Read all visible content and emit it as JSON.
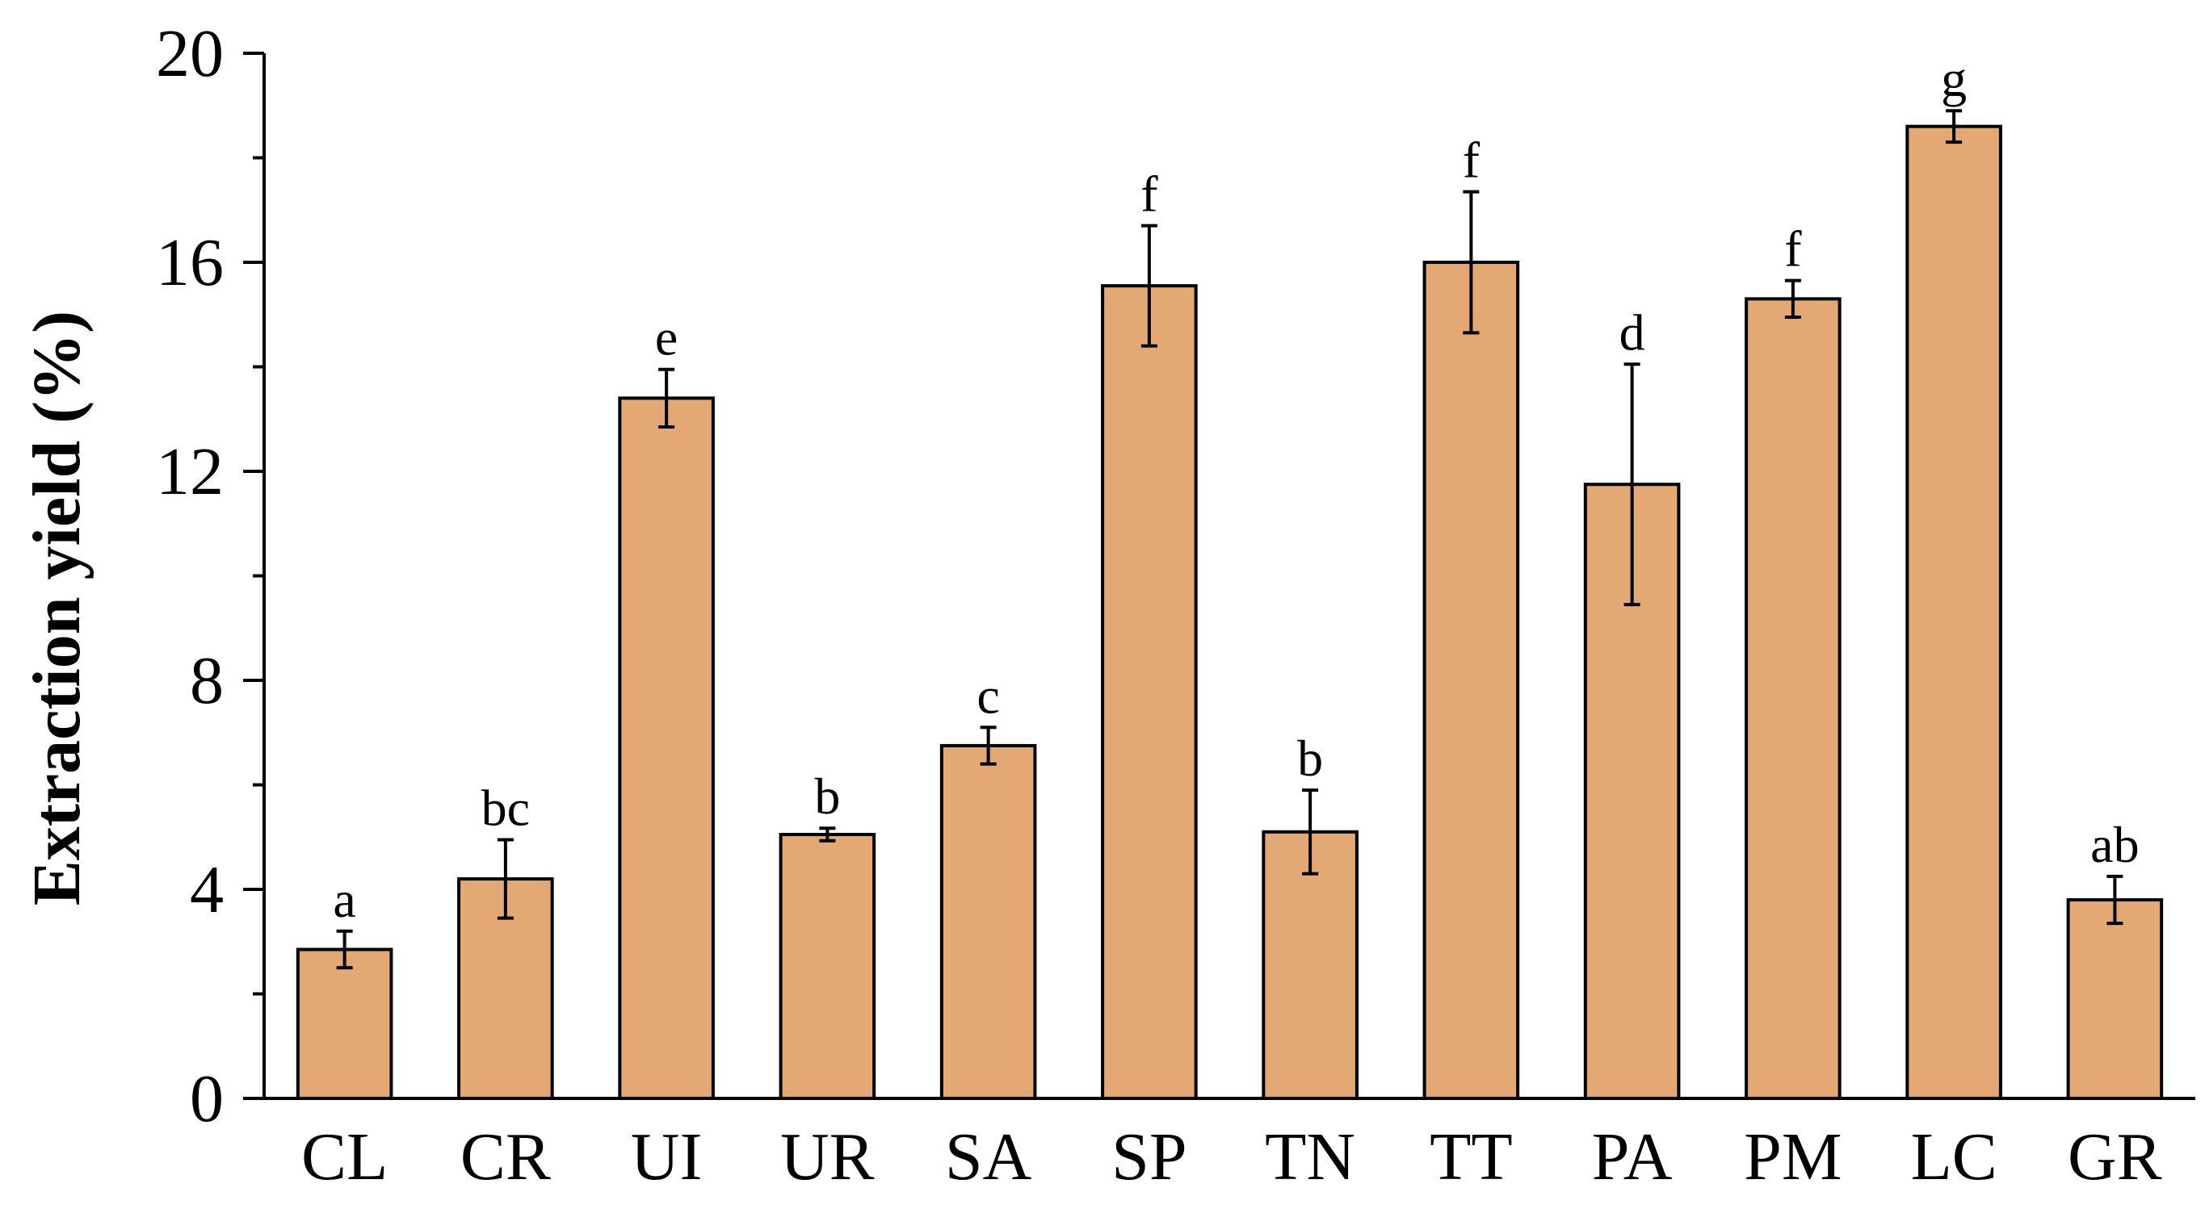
{
  "chart_data": {
    "type": "bar",
    "title": "",
    "xlabel": "",
    "ylabel": "Extraction yield (%)",
    "ylim": [
      0,
      20
    ],
    "yticks": [
      0,
      4,
      8,
      12,
      16,
      20
    ],
    "categories": [
      "CL",
      "CR",
      "UI",
      "UR",
      "SA",
      "SP",
      "TN",
      "TT",
      "PA",
      "PM",
      "LC",
      "GR"
    ],
    "values": [
      2.85,
      4.2,
      13.4,
      5.05,
      6.75,
      15.55,
      5.1,
      16.0,
      11.75,
      15.3,
      18.6,
      3.8
    ],
    "errors": [
      0.35,
      0.75,
      0.55,
      0.12,
      0.35,
      1.15,
      0.8,
      1.35,
      2.3,
      0.35,
      0.3,
      0.45
    ],
    "significance": [
      "a",
      "bc",
      "e",
      "b",
      "c",
      "f",
      "b",
      "f",
      "d",
      "f",
      "g",
      "ab"
    ],
    "bar_color": "#e3a874",
    "bar_edge_color": "#000000",
    "grid": false,
    "legend": "none"
  }
}
